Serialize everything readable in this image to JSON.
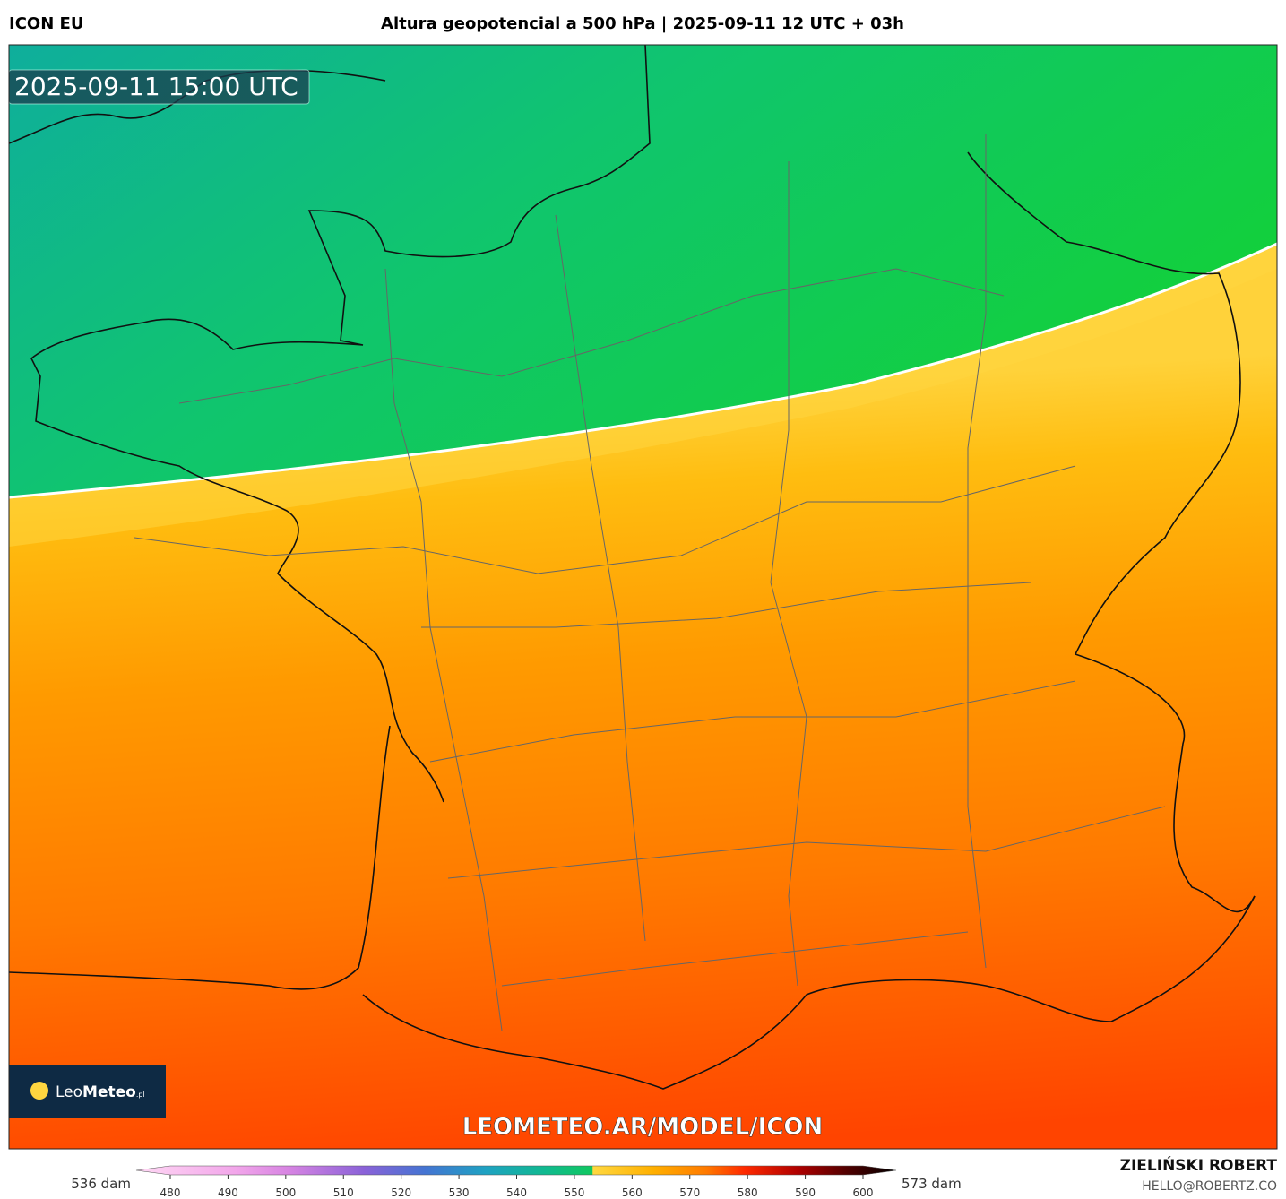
{
  "header": {
    "model": "ICON EU",
    "title": "Altura geopotencial a 500 hPa | 2025-09-11 12 UTC + 03h"
  },
  "map": {
    "valid_time": "2025-09-11 15:00 UTC",
    "watermark": "LEOMETEO.AR/MODEL/ICON",
    "logo": {
      "light": "Leo",
      "bold": "Meteo",
      "suffix": ".pl"
    }
  },
  "colorbar": {
    "min_label": "536 dam",
    "max_label": "573 dam",
    "range": [
      480,
      600
    ],
    "ticks": [
      480,
      490,
      500,
      510,
      520,
      530,
      540,
      550,
      560,
      570,
      580,
      590,
      600
    ]
  },
  "footer": {
    "author": "ZIELIŃSKI ROBERT",
    "contact": "HELLO@ROBERTZ.CO"
  }
}
